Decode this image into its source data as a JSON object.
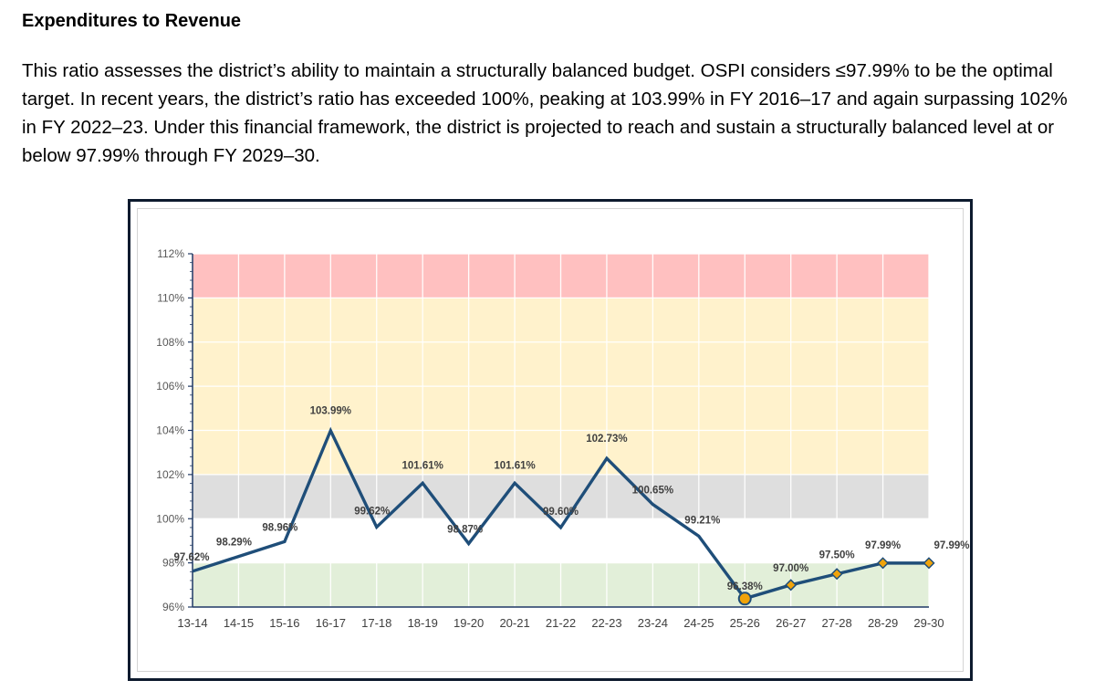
{
  "doc": {
    "heading": "Expenditures to Revenue",
    "paragraph": "This ratio assesses the district’s ability to maintain a structurally balanced budget. OSPI considers ≤97.99% to be the optimal target. In recent years, the district’s ratio has exceeded 100%, peaking at 103.99% in FY 2016–17 and again surpassing 102% in FY 2022–23. Under this financial framework, the district is projected to reach and sustain a structurally balanced level at or below 97.99% through FY 2029–30."
  },
  "chart_data": {
    "type": "line",
    "title": "",
    "xlabel": "",
    "ylabel": "",
    "categories": [
      "13-14",
      "14-15",
      "15-16",
      "16-17",
      "17-18",
      "18-19",
      "19-20",
      "20-21",
      "21-22",
      "22-23",
      "23-24",
      "24-25",
      "25-26",
      "26-27",
      "27-28",
      "28-29",
      "29-30"
    ],
    "series": [
      {
        "values": [
          97.62,
          98.29,
          98.96,
          103.99,
          99.62,
          101.61,
          98.87,
          101.61,
          99.6,
          102.73,
          100.65,
          99.21,
          96.38,
          97.0,
          97.5,
          97.99,
          97.99
        ],
        "labels": [
          "97.62%",
          "98.29%",
          "98.96%",
          "103.99%",
          "99.62%",
          "101.61%",
          "98.87%",
          "101.61%",
          "99.60%",
          "102.73%",
          "100.65%",
          "99.21%",
          "96.38%",
          "97.00%",
          "97.50%",
          "97.99%",
          "97.99%"
        ],
        "line_color": "#1f4e79",
        "marker_color": "#f0a30a",
        "marker_start_index": 12
      }
    ],
    "ylim": [
      96,
      112
    ],
    "y_ticks": [
      96,
      98,
      100,
      102,
      104,
      106,
      108,
      110,
      112
    ],
    "y_tick_labels": [
      "96%",
      "98%",
      "100%",
      "102%",
      "104%",
      "106%",
      "108%",
      "110%",
      "112%"
    ],
    "bands": [
      {
        "from": 96,
        "to": 98,
        "color": "#e2efd9"
      },
      {
        "from": 98,
        "to": 100,
        "color": "#ffffff"
      },
      {
        "from": 100,
        "to": 102,
        "color": "#dedede"
      },
      {
        "from": 102,
        "to": 110,
        "color": "#fff2cc"
      },
      {
        "from": 110,
        "to": 112,
        "color": "#ffc0c0"
      }
    ],
    "grid": true,
    "legend": "none"
  }
}
